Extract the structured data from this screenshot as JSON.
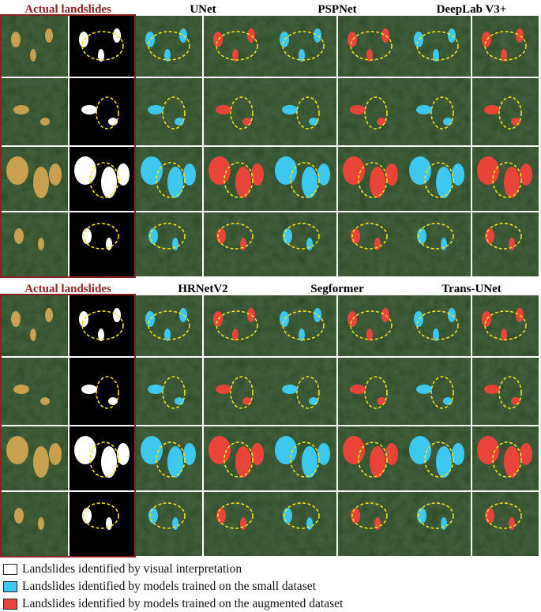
{
  "top_panel": {
    "titles": [
      "Actual landslides",
      "UNet",
      "PSPNet",
      "DeepLab V3+"
    ]
  },
  "bottom_panel": {
    "titles": [
      "Actual landslides",
      "HRNetV2",
      "Segformer",
      "Trans-UNet"
    ]
  },
  "legend": [
    {
      "label": "Landslides identified by visual interpretation",
      "color": "#ffffff"
    },
    {
      "label": "Landslides identified by models trained on the small dataset",
      "color": "#3cc8f0"
    },
    {
      "label": "Landslides identified by models trained on the augmented dataset",
      "color": "#e8443a"
    }
  ],
  "colors": {
    "actual_title": "#8b2323",
    "model_title": "#000000",
    "highlight_ellipse": "#f0e020",
    "border": "#8b2323",
    "forest": "#2e4a28",
    "landslide": "#c8a050",
    "small_dataset_prediction": "#3cc8f0",
    "augmented_dataset_prediction": "#e8443a"
  }
}
